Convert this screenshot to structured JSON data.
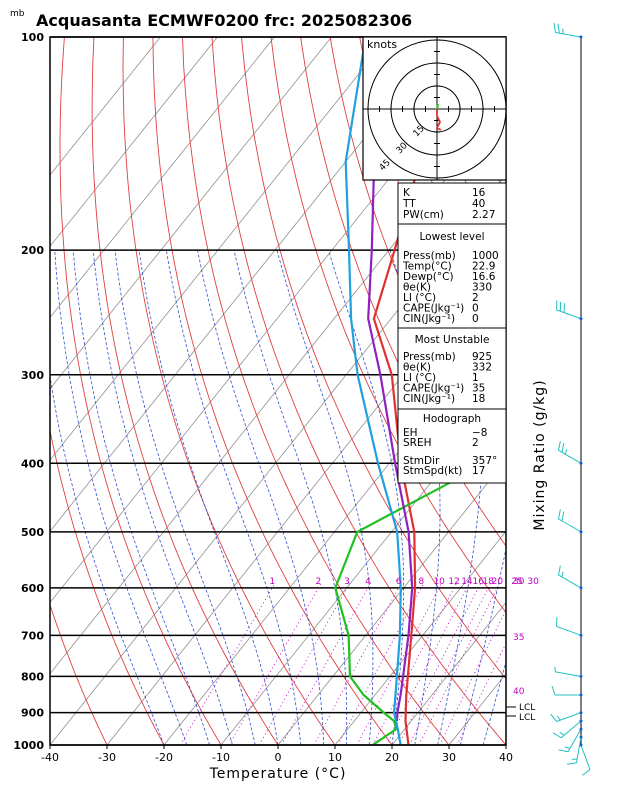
{
  "title": "Acquasanta ECMWF0200  frc: 2025082306",
  "pressure_unit": "mb",
  "xlabel": "Temperature (°C)",
  "right_label": "Mixing Ratio  (g/kg)",
  "colors": {
    "temperature": "#e03030",
    "dewpoint": "#20c020",
    "parcel": "#9020c0",
    "virtual": "#20a0e0",
    "dry_adiabat": "#e04040",
    "moist_adiabat": "#3050d0",
    "mixing_ratio": "#c000c0",
    "isotherm": "#909090",
    "wind": "#20c0c0"
  },
  "hodograph": {
    "unit": "knots",
    "ring_labels": [
      "15",
      "30",
      "45"
    ]
  },
  "indices": {
    "top": [
      {
        "label": "K",
        "value": "16"
      },
      {
        "label": "TT",
        "value": "40"
      },
      {
        "label": "PW(cm)",
        "value": "2.27"
      }
    ],
    "lowest": {
      "header": "Lowest level",
      "rows": [
        {
          "label": "Press(mb)",
          "value": "1000"
        },
        {
          "label": "Temp(°C)",
          "value": "22.9"
        },
        {
          "label": "Dewp(°C)",
          "value": "16.6"
        },
        {
          "label": "θe(K)",
          "value": "330"
        },
        {
          "label": "LI (°C)",
          "value": "2"
        },
        {
          "label": "CAPE(Jkg⁻¹)",
          "value": "0"
        },
        {
          "label": "CIN(Jkg⁻¹)",
          "value": "0"
        }
      ]
    },
    "most_unstable": {
      "header": "Most Unstable",
      "rows": [
        {
          "label": "Press(mb)",
          "value": "925"
        },
        {
          "label": "θe(K)",
          "value": "332"
        },
        {
          "label": "LI (°C)",
          "value": "1"
        },
        {
          "label": "CAPE(Jkg⁻¹)",
          "value": "35"
        },
        {
          "label": "CIN(Jkg⁻¹)",
          "value": "18"
        }
      ]
    },
    "hodograph_box": {
      "header": "Hodograph",
      "rows": [
        {
          "label": "EH",
          "value": "−8"
        },
        {
          "label": "SREH",
          "value": "2"
        },
        {
          "label": "StmDir",
          "value": "357°"
        },
        {
          "label": "StmSpd(kt)",
          "value": "17"
        }
      ]
    }
  },
  "lcl_labels": [
    "LCL",
    "LCL"
  ],
  "chart_data": {
    "type": "line",
    "subtype": "skew-T log-P sounding",
    "xlabel": "Temperature (°C)",
    "ylabel": "mb",
    "xlim": [
      -40,
      40
    ],
    "ylim": [
      1000,
      100
    ],
    "y_scale": "log",
    "x_ticks": [
      -40,
      -30,
      -20,
      -10,
      0,
      10,
      20,
      30,
      40
    ],
    "y_ticks": [
      100,
      200,
      300,
      400,
      500,
      600,
      700,
      800,
      900,
      1000
    ],
    "mixing_ratio_labels": [
      "1",
      "2",
      "3",
      "4",
      "6",
      "8",
      "10",
      "12",
      "14",
      "16",
      "18",
      "20",
      "25",
      "30"
    ],
    "theta_labels": [
      "30",
      "35",
      "40"
    ],
    "series": [
      {
        "key": "temperature",
        "points": [
          [
            1000,
            22.9
          ],
          [
            925,
            19
          ],
          [
            850,
            15.5
          ],
          [
            700,
            8
          ],
          [
            600,
            2
          ],
          [
            500,
            -6
          ],
          [
            400,
            -18
          ],
          [
            300,
            -32
          ],
          [
            250,
            -43
          ],
          [
            200,
            -49
          ],
          [
            150,
            -57
          ],
          [
            100,
            -63
          ]
        ]
      },
      {
        "key": "dewpoint",
        "points": [
          [
            1000,
            16.6
          ],
          [
            950,
            18.5
          ],
          [
            925,
            17
          ],
          [
            900,
            14
          ],
          [
            850,
            8
          ],
          [
            800,
            3
          ],
          [
            700,
            -3
          ],
          [
            600,
            -12
          ],
          [
            500,
            -16
          ],
          [
            400,
            -3
          ],
          [
            300,
            -12
          ],
          [
            250,
            -17
          ],
          [
            200,
            -23
          ],
          [
            150,
            -28
          ],
          [
            100,
            -37
          ]
        ]
      },
      {
        "key": "parcel",
        "points": [
          [
            925,
            17.5
          ],
          [
            900,
            16.4
          ],
          [
            850,
            14.5
          ],
          [
            700,
            7.5
          ],
          [
            600,
            1.5
          ],
          [
            500,
            -7
          ],
          [
            400,
            -19
          ],
          [
            300,
            -34
          ],
          [
            250,
            -44
          ],
          [
            200,
            -53
          ],
          [
            150,
            -65
          ],
          [
            115,
            -75
          ]
        ]
      },
      {
        "key": "virtual",
        "points": [
          [
            1000,
            21.5
          ],
          [
            950,
            18.8
          ],
          [
            900,
            15.8
          ],
          [
            850,
            13.6
          ],
          [
            700,
            6
          ],
          [
            600,
            -0.5
          ],
          [
            500,
            -9
          ],
          [
            400,
            -22
          ],
          [
            300,
            -38
          ],
          [
            250,
            -47
          ],
          [
            200,
            -57
          ],
          [
            150,
            -70
          ],
          [
            100,
            -84
          ]
        ]
      }
    ],
    "wind_barbs": [
      {
        "p": 1000,
        "dir": 160,
        "spd": 10
      },
      {
        "p": 975,
        "dir": 190,
        "spd": 15
      },
      {
        "p": 950,
        "dir": 210,
        "spd": 15
      },
      {
        "p": 925,
        "dir": 230,
        "spd": 15
      },
      {
        "p": 900,
        "dir": 250,
        "spd": 15
      },
      {
        "p": 850,
        "dir": 270,
        "spd": 10
      },
      {
        "p": 800,
        "dir": 280,
        "spd": 5
      },
      {
        "p": 700,
        "dir": 290,
        "spd": 10
      },
      {
        "p": 600,
        "dir": 300,
        "spd": 15
      },
      {
        "p": 500,
        "dir": 300,
        "spd": 20
      },
      {
        "p": 400,
        "dir": 300,
        "spd": 25
      },
      {
        "p": 250,
        "dir": 290,
        "spd": 30
      },
      {
        "p": 100,
        "dir": 280,
        "spd": 25
      }
    ]
  }
}
